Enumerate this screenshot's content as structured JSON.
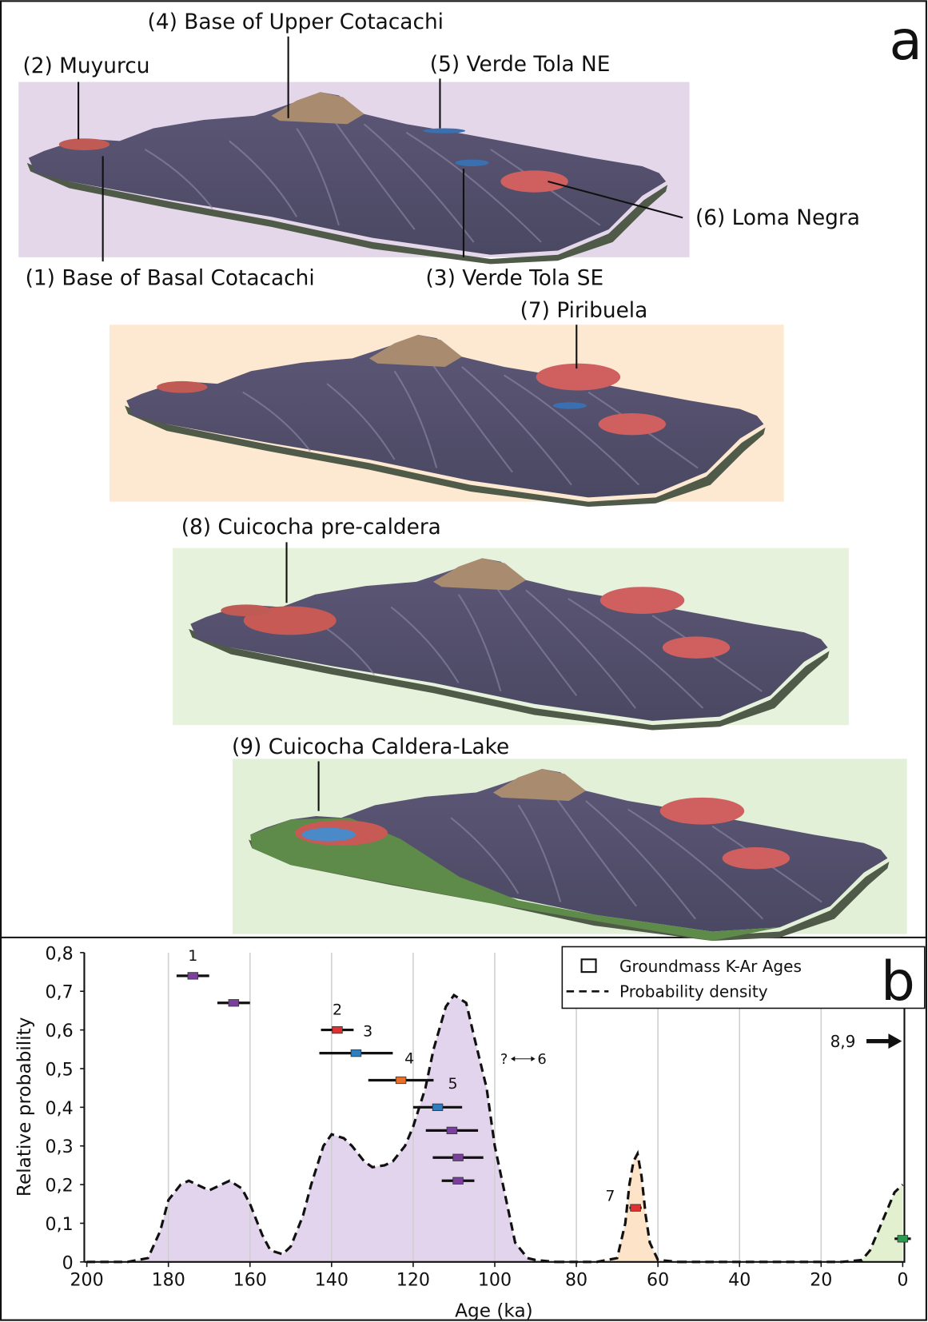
{
  "panel_a": {
    "letter": "a",
    "labels": [
      "(2) Muyurcu",
      "(4) Base of Upper Cotacachi",
      "(5) Verde Tola NE",
      "(6) Loma Negra",
      "(1) Base of Basal Cotacachi",
      "(3) Verde Tola SE",
      "(7) Piribuela",
      "(8) Cuicocha pre-caldera",
      "(9) Cuicocha Caldera-Lake"
    ]
  },
  "chart_data": {
    "type": "scatter",
    "letter": "b",
    "xlabel": "Age (ka)",
    "ylabel": "Relative probability",
    "xlim": [
      200,
      0
    ],
    "ylim": [
      0,
      0.8
    ],
    "xticks": [
      200,
      180,
      160,
      140,
      120,
      100,
      80,
      60,
      40,
      20,
      0
    ],
    "yticks": [
      0,
      {
        "value": 0.1,
        "label": "0,1"
      },
      {
        "value": 0.2,
        "label": "0,2"
      },
      {
        "value": 0.3,
        "label": "0,3"
      },
      {
        "value": 0.4,
        "label": "0,4"
      },
      {
        "value": 0.5,
        "label": "0,5"
      },
      {
        "value": 0.6,
        "label": "0,6"
      },
      {
        "value": 0.7,
        "label": "0,7"
      },
      {
        "value": 0.8,
        "label": "0,8"
      }
    ],
    "grid": true,
    "legend": "upper right",
    "points": {
      "name": "Groundmass K-Ar Ages",
      "x": [
        174,
        164,
        138.6,
        134,
        123,
        114,
        110.5,
        109,
        109,
        65.5,
        0
      ],
      "values": [
        0.74,
        0.67,
        0.6,
        0.54,
        0.47,
        0.4,
        0.34,
        0.27,
        0.21,
        0.14,
        0.06
      ],
      "xerr": [
        4,
        4,
        4,
        9,
        8,
        6,
        6.4,
        6.2,
        4,
        1.5,
        2
      ],
      "colors": [
        "#7b3fa0",
        "#7b3fa0",
        "#e03030",
        "#2f7fc0",
        "#e8702a",
        "#2f7fc0",
        "#7b3fa0",
        "#7b3fa0",
        "#7b3fa0",
        "#e03030",
        "#2a9a50"
      ],
      "labels": [
        "1",
        null,
        "2",
        "3",
        "4",
        "5",
        null,
        null,
        null,
        "7",
        null
      ]
    },
    "density": {
      "name": "Probability density",
      "series": [
        {
          "color": "#e2d4ec",
          "x": [
            200,
            190,
            185,
            182,
            180,
            177,
            175,
            172,
            170,
            167,
            165,
            162,
            160,
            157,
            155,
            152,
            150,
            147,
            145,
            142,
            140,
            137,
            135,
            132,
            130,
            127,
            125,
            122,
            120,
            117,
            115,
            112,
            110,
            107,
            105,
            102,
            100,
            97,
            95,
            92,
            90,
            85
          ],
          "values": [
            0,
            0,
            0.01,
            0.08,
            0.16,
            0.2,
            0.21,
            0.195,
            0.185,
            0.2,
            0.21,
            0.19,
            0.15,
            0.07,
            0.03,
            0.02,
            0.04,
            0.12,
            0.2,
            0.3,
            0.33,
            0.32,
            0.3,
            0.26,
            0.245,
            0.25,
            0.26,
            0.3,
            0.35,
            0.45,
            0.55,
            0.66,
            0.69,
            0.67,
            0.58,
            0.45,
            0.3,
            0.15,
            0.05,
            0.01,
            0.005,
            0
          ]
        },
        {
          "color": "#fde3c8",
          "x": [
            85,
            75,
            70,
            68,
            67,
            66,
            65,
            64,
            63,
            62,
            60,
            55
          ],
          "values": [
            0,
            0,
            0.01,
            0.1,
            0.2,
            0.26,
            0.28,
            0.22,
            0.12,
            0.05,
            0.005,
            0
          ]
        },
        {
          "color": "#e3f0d0",
          "x": [
            55,
            15,
            10,
            8,
            6,
            4,
            2,
            0
          ],
          "values": [
            0,
            0,
            0.005,
            0.03,
            0.08,
            0.13,
            0.18,
            0.2
          ]
        }
      ]
    },
    "annotations": [
      "?",
      "6",
      "8,9"
    ]
  }
}
